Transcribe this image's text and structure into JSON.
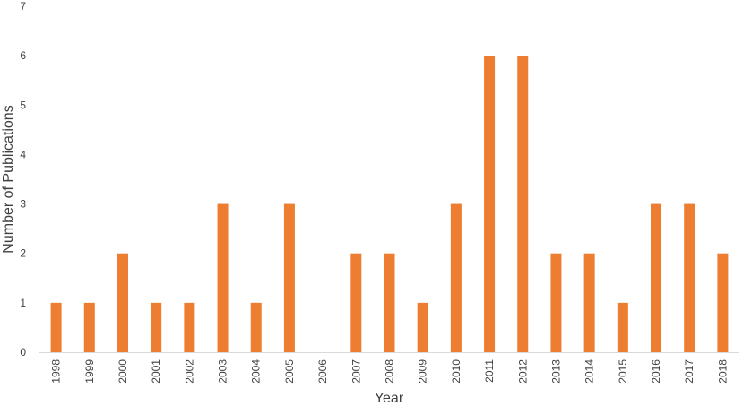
{
  "chart_data": {
    "type": "bar",
    "categories": [
      "1998",
      "1999",
      "2000",
      "2001",
      "2002",
      "2003",
      "2004",
      "2005",
      "2006",
      "2007",
      "2008",
      "2009",
      "2010",
      "2011",
      "2012",
      "2013",
      "2014",
      "2015",
      "2016",
      "2017",
      "2018"
    ],
    "values": [
      1,
      1,
      2,
      1,
      1,
      3,
      1,
      3,
      0,
      2,
      2,
      1,
      3,
      6,
      6,
      2,
      2,
      1,
      3,
      3,
      2
    ],
    "title": "",
    "xlabel": "Year",
    "ylabel": "Number of Publications",
    "ylim": [
      0,
      7
    ],
    "yticks": [
      0,
      1,
      2,
      3,
      4,
      5,
      6,
      7
    ],
    "bar_color": "#ED7D31",
    "axis_color": "#D9D9D9",
    "grid": false,
    "legend": "none"
  }
}
